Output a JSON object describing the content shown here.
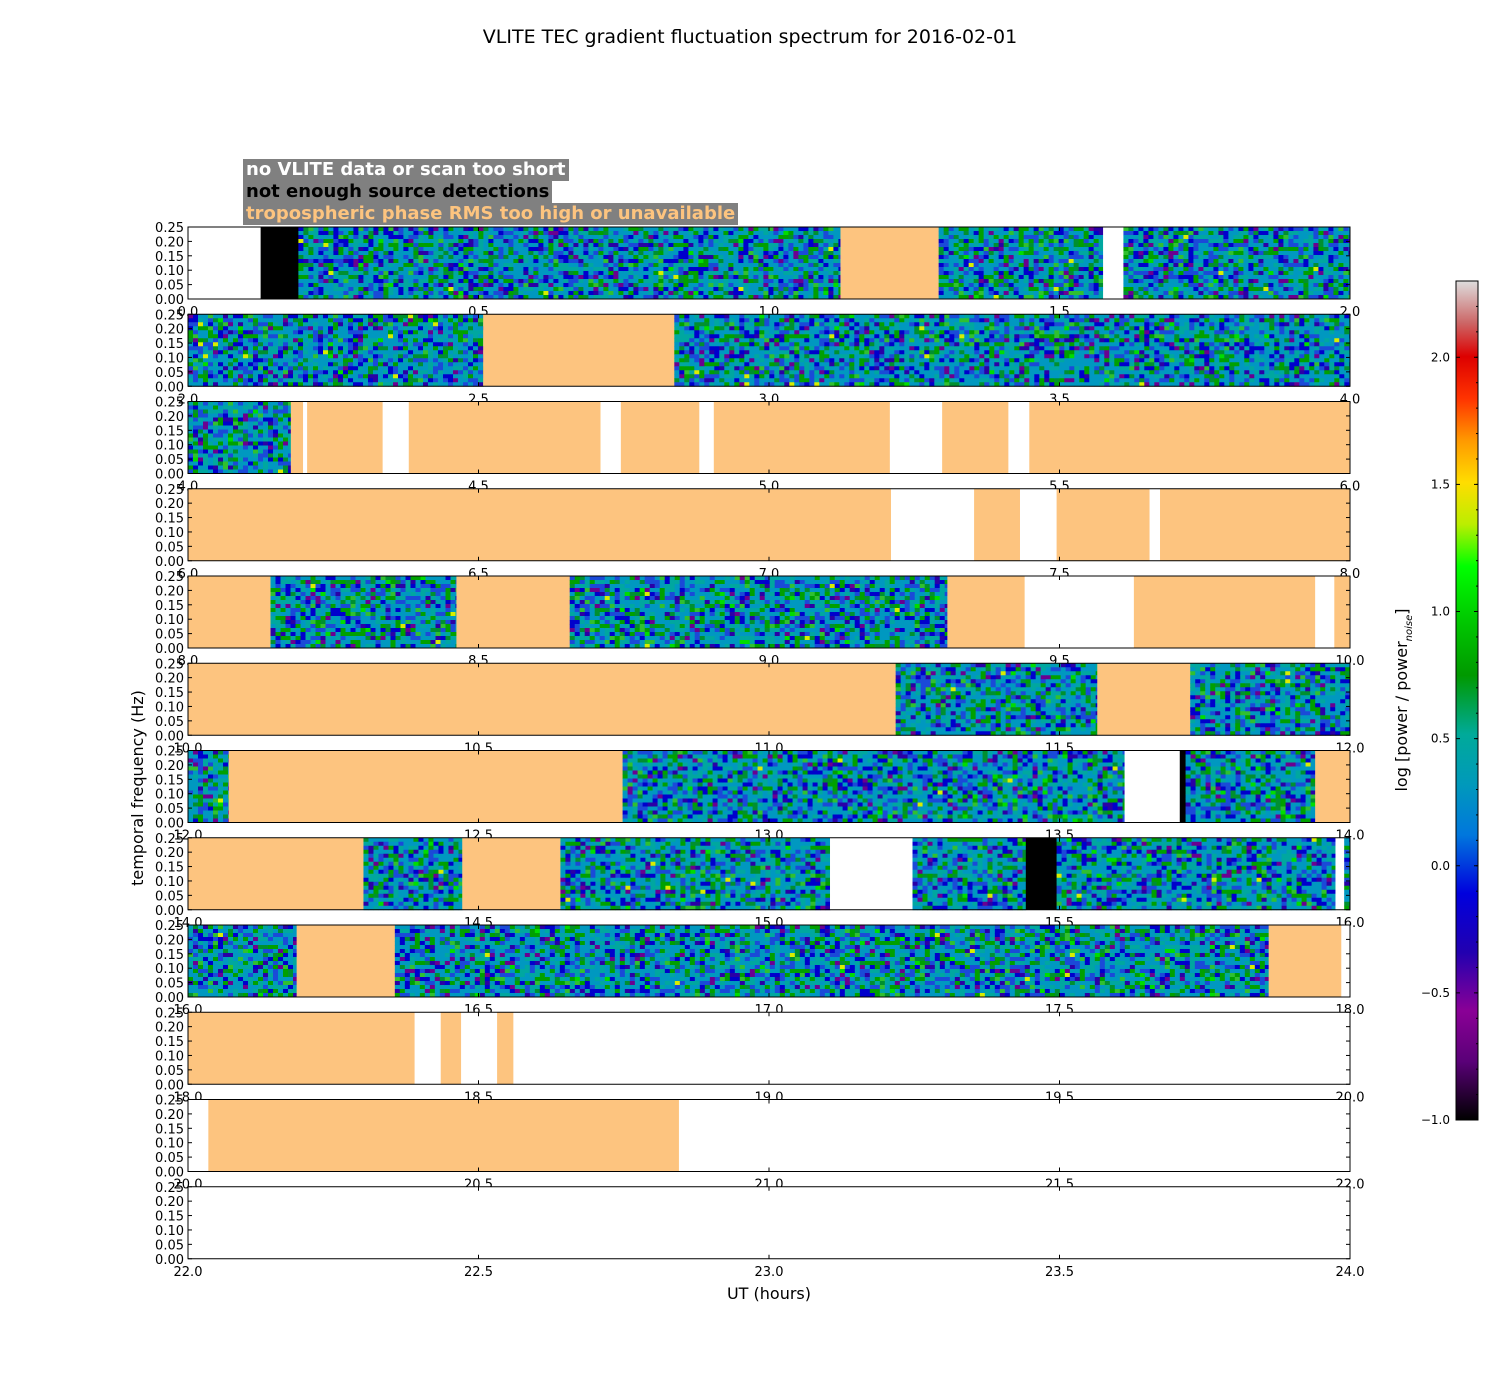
{
  "chart_data": {
    "type": "heatmap",
    "title": "VLITE TEC gradient fluctuation spectrum for 2016-02-01",
    "xlabel": "UT (hours)",
    "ylabel": "temporal frequency (Hz)",
    "ylim": [
      0,
      0.25
    ],
    "y_ticks": [
      "0.00",
      "0.05",
      "0.10",
      "0.15",
      "0.20",
      "0.25"
    ],
    "colorbar": {
      "label": "log [power / power",
      "label_subscript": "noise",
      "label_close": "]",
      "range": [
        -1.0,
        2.3
      ],
      "ticks": [
        "−1.0",
        "−0.5",
        "0.0",
        "0.5",
        "1.0",
        "1.5",
        "2.0"
      ],
      "tick_values": [
        -1.0,
        -0.5,
        0.0,
        0.5,
        1.0,
        1.5,
        2.0
      ]
    },
    "legend": [
      {
        "label": "no VLITE data or scan too short",
        "color": "#ffffff"
      },
      {
        "label": "not enough source detections",
        "color": "#000000"
      },
      {
        "label": "tropospheric phase RMS too high or unavailable",
        "color": "#fdc47f"
      }
    ],
    "panels": [
      {
        "x_range": [
          0,
          2
        ],
        "x_ticks": [
          "0.0",
          "0.5",
          "1.0",
          "1.5",
          "2.0"
        ],
        "segments": [
          [
            "w",
            0,
            0.125
          ],
          [
            "b",
            0.125,
            0.19
          ],
          [
            "d",
            0.19,
            1.123
          ],
          [
            "t",
            1.123,
            1.292
          ],
          [
            "d",
            1.292,
            1.575
          ],
          [
            "w",
            1.575,
            1.61
          ],
          [
            "d",
            1.61,
            2.0
          ]
        ]
      },
      {
        "x_range": [
          2,
          4
        ],
        "x_ticks": [
          "2.0",
          "2.5",
          "3.0",
          "3.5",
          "4.0"
        ],
        "segments": [
          [
            "d",
            2.0,
            2.508
          ],
          [
            "t",
            2.508,
            2.837
          ],
          [
            "d",
            2.837,
            4.0
          ]
        ]
      },
      {
        "x_range": [
          4,
          6
        ],
        "x_ticks": [
          "4.0",
          "4.5",
          "5.0",
          "5.5",
          "6.0"
        ],
        "segments": [
          [
            "d",
            4.0,
            4.177
          ],
          [
            "t",
            4.177,
            4.198
          ],
          [
            "w",
            4.198,
            4.205
          ],
          [
            "t",
            4.205,
            4.335
          ],
          [
            "w",
            4.335,
            4.38
          ],
          [
            "t",
            4.38,
            4.71
          ],
          [
            "w",
            4.71,
            4.745
          ],
          [
            "t",
            4.745,
            4.88
          ],
          [
            "w",
            4.88,
            4.905
          ],
          [
            "t",
            4.905,
            5.208
          ],
          [
            "w",
            5.208,
            5.298
          ],
          [
            "t",
            5.298,
            5.412
          ],
          [
            "w",
            5.412,
            5.448
          ],
          [
            "t",
            5.448,
            6.0
          ]
        ]
      },
      {
        "x_range": [
          6,
          8
        ],
        "x_ticks": [
          "6.0",
          "6.5",
          "7.0",
          "7.5",
          "8.0"
        ],
        "segments": [
          [
            "t",
            6.0,
            7.21
          ],
          [
            "w",
            7.21,
            7.353
          ],
          [
            "t",
            7.353,
            7.432
          ],
          [
            "w",
            7.432,
            7.495
          ],
          [
            "t",
            7.495,
            7.655
          ],
          [
            "w",
            7.655,
            7.673
          ],
          [
            "t",
            7.673,
            8.0
          ]
        ]
      },
      {
        "x_range": [
          8,
          10
        ],
        "x_ticks": [
          "8.0",
          "8.5",
          "9.0",
          "9.5",
          "10.0"
        ],
        "segments": [
          [
            "t",
            8.0,
            8.142
          ],
          [
            "d",
            8.142,
            8.462
          ],
          [
            "t",
            8.462,
            8.657
          ],
          [
            "d",
            8.657,
            9.307
          ],
          [
            "t",
            9.307,
            9.44
          ],
          [
            "w",
            9.44,
            9.628
          ],
          [
            "t",
            9.628,
            9.94
          ],
          [
            "w",
            9.94,
            9.973
          ],
          [
            "t",
            9.973,
            10.0
          ]
        ]
      },
      {
        "x_range": [
          10,
          12
        ],
        "x_ticks": [
          "10.0",
          "10.5",
          "11.0",
          "11.5",
          "12.0"
        ],
        "segments": [
          [
            "t",
            10.0,
            11.218
          ],
          [
            "d",
            11.218,
            11.565
          ],
          [
            "t",
            11.565,
            11.725
          ],
          [
            "d",
            11.725,
            12.0
          ]
        ]
      },
      {
        "x_range": [
          12,
          14
        ],
        "x_ticks": [
          "12.0",
          "12.5",
          "13.0",
          "13.5",
          "14.0"
        ],
        "segments": [
          [
            "d",
            12.0,
            12.07
          ],
          [
            "t",
            12.07,
            12.748
          ],
          [
            "d",
            12.748,
            13.612
          ],
          [
            "w",
            13.612,
            13.707
          ],
          [
            "b",
            13.707,
            13.717
          ],
          [
            "d",
            13.717,
            13.94
          ],
          [
            "t",
            13.94,
            14.0
          ]
        ]
      },
      {
        "x_range": [
          14,
          16
        ],
        "x_ticks": [
          "14.0",
          "14.5",
          "15.0",
          "15.5",
          "16.0"
        ],
        "segments": [
          [
            "t",
            14.0,
            14.302
          ],
          [
            "d",
            14.302,
            14.472
          ],
          [
            "t",
            14.472,
            14.641
          ],
          [
            "d",
            14.641,
            15.105
          ],
          [
            "w",
            15.105,
            15.247
          ],
          [
            "d",
            15.247,
            15.442
          ],
          [
            "b",
            15.442,
            15.495
          ],
          [
            "d",
            15.495,
            15.975
          ],
          [
            "w",
            15.975,
            15.99
          ],
          [
            "d",
            15.99,
            16.0
          ]
        ]
      },
      {
        "x_range": [
          16,
          18
        ],
        "x_ticks": [
          "16.0",
          "16.5",
          "17.0",
          "17.5",
          "18.0"
        ],
        "segments": [
          [
            "d",
            16.0,
            16.187
          ],
          [
            "t",
            16.187,
            16.356
          ],
          [
            "d",
            16.356,
            17.86
          ],
          [
            "t",
            17.86,
            17.985
          ],
          [
            "w",
            17.985,
            18.0
          ]
        ]
      },
      {
        "x_range": [
          18,
          20
        ],
        "x_ticks": [
          "18.0",
          "18.5",
          "19.0",
          "19.5",
          "20.0"
        ],
        "segments": [
          [
            "t",
            18.0,
            18.39
          ],
          [
            "w",
            18.39,
            18.435
          ],
          [
            "t",
            18.435,
            18.47
          ],
          [
            "w",
            18.47,
            18.532
          ],
          [
            "t",
            18.532,
            18.56
          ],
          [
            "w",
            18.56,
            20.0
          ]
        ]
      },
      {
        "x_range": [
          20,
          22
        ],
        "x_ticks": [
          "20.0",
          "20.5",
          "21.0",
          "21.5",
          "22.0"
        ],
        "segments": [
          [
            "w",
            20.0,
            20.035
          ],
          [
            "t",
            20.035,
            20.845
          ],
          [
            "w",
            20.845,
            22.0
          ]
        ]
      },
      {
        "x_range": [
          22,
          24
        ],
        "x_ticks": [
          "22.0",
          "22.5",
          "23.0",
          "23.5",
          "24.0"
        ],
        "segments": [
          [
            "w",
            22.0,
            24.0
          ]
        ]
      }
    ]
  }
}
